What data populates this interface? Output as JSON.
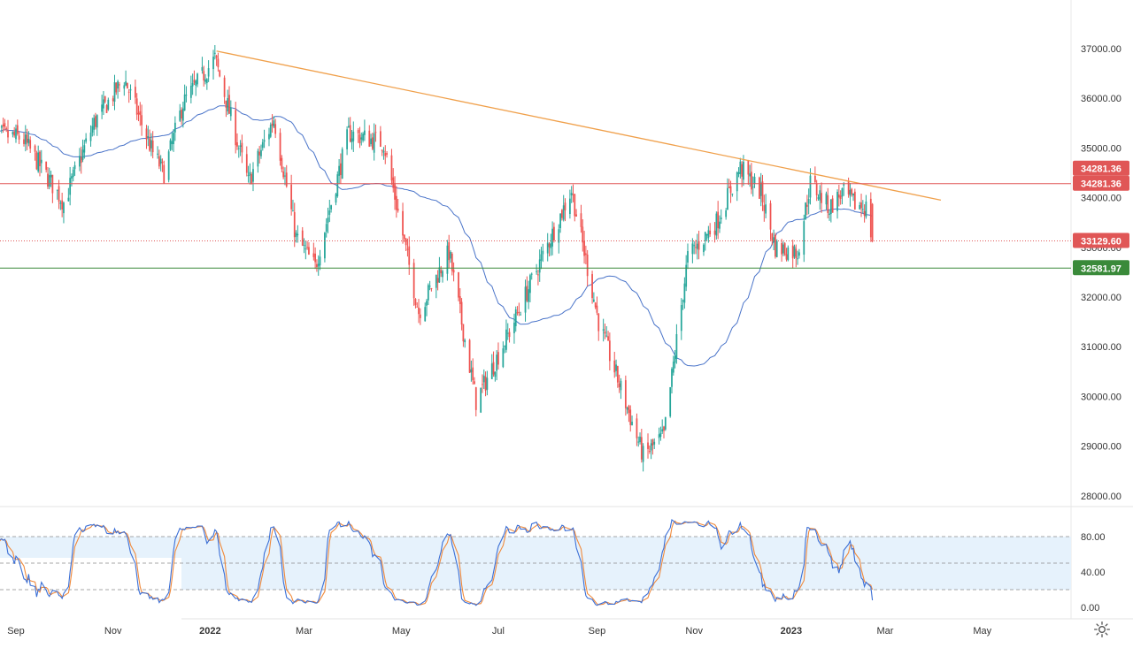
{
  "chart_data": {
    "type": "candlestick",
    "title": "",
    "x_labels": [
      "Sep",
      "Nov",
      "2022",
      "Mar",
      "May",
      "Jul",
      "Sep",
      "Nov",
      "2023",
      "Mar",
      "May"
    ],
    "price_axis": {
      "ticks": [
        "37000.00",
        "36000.00",
        "35000.00",
        "34000.00",
        "33000.00",
        "32000.00",
        "31000.00",
        "30000.00",
        "29000.00",
        "28000.00"
      ],
      "range": [
        27800,
        37800
      ]
    },
    "levels": [
      {
        "name": "resistance",
        "value": 34281.36,
        "label": "34281.36",
        "color": "#e05656",
        "style": "solid"
      },
      {
        "name": "last-price",
        "value": 33129.6,
        "label": "33129.60",
        "color": "#e05656",
        "style": "dotted"
      },
      {
        "name": "support",
        "value": 32581.97,
        "label": "32581.97",
        "color": "#3a8a3a",
        "style": "solid"
      }
    ],
    "extra_price_label": "34281.36",
    "trendline": {
      "from": {
        "date": "2022-01-05",
        "price": 36950
      },
      "to": {
        "date": "2023-04-05",
        "price": 33950
      },
      "color": "#f0a04b"
    },
    "moving_average_color": "#4a74c9",
    "ohlc_key_points": [
      {
        "date": "2021-08-15",
        "close": 35300
      },
      {
        "date": "2021-09-05",
        "close": 35200
      },
      {
        "date": "2021-10-01",
        "close": 33900
      },
      {
        "date": "2021-10-20",
        "close": 35500
      },
      {
        "date": "2021-11-08",
        "close": 36400
      },
      {
        "date": "2021-11-26",
        "close": 34900
      },
      {
        "date": "2021-12-03",
        "close": 34500
      },
      {
        "date": "2021-12-15",
        "close": 35900
      },
      {
        "date": "2022-01-04",
        "close": 36800
      },
      {
        "date": "2022-01-25",
        "close": 34300
      },
      {
        "date": "2022-02-10",
        "close": 35600
      },
      {
        "date": "2022-02-24",
        "close": 33200
      },
      {
        "date": "2022-03-08",
        "close": 32600
      },
      {
        "date": "2022-03-29",
        "close": 35300
      },
      {
        "date": "2022-04-20",
        "close": 35100
      },
      {
        "date": "2022-05-12",
        "close": 31700
      },
      {
        "date": "2022-05-31",
        "close": 32900
      },
      {
        "date": "2022-06-17",
        "close": 29900
      },
      {
        "date": "2022-07-08",
        "close": 31300
      },
      {
        "date": "2022-08-16",
        "close": 34150
      },
      {
        "date": "2022-09-02",
        "close": 31500
      },
      {
        "date": "2022-09-30",
        "close": 28800
      },
      {
        "date": "2022-10-13",
        "close": 29200
      },
      {
        "date": "2022-10-28",
        "close": 32800
      },
      {
        "date": "2022-11-15",
        "close": 33500
      },
      {
        "date": "2022-11-30",
        "close": 34600
      },
      {
        "date": "2022-12-13",
        "close": 34100
      },
      {
        "date": "2022-12-22",
        "close": 33000
      },
      {
        "date": "2023-01-05",
        "close": 32900
      },
      {
        "date": "2023-01-13",
        "close": 34300
      },
      {
        "date": "2023-01-25",
        "close": 33800
      },
      {
        "date": "2023-02-02",
        "close": 34100
      },
      {
        "date": "2023-02-10",
        "close": 33870
      },
      {
        "date": "2023-02-17",
        "close": 33800
      },
      {
        "date": "2023-02-21",
        "close": 33129.6
      }
    ],
    "oscillator": {
      "name": "stochastic",
      "ticks": [
        "80.00",
        "40.00",
        "0.00"
      ],
      "upper_band": 80,
      "lower_band": 20,
      "mid_line": 50,
      "k_color": "#3b6fd6",
      "d_color": "#f08a3c"
    },
    "grid": false
  }
}
